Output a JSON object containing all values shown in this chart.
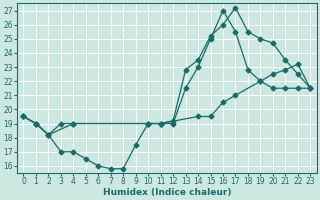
{
  "xlabel": "Humidex (Indice chaleur)",
  "bg_color": "#cce8e0",
  "grid_color": "#b0d8cf",
  "line_color": "#1a6b6b",
  "xlim": [
    -0.5,
    23.5
  ],
  "ylim": [
    15.5,
    27.5
  ],
  "xticks": [
    0,
    1,
    2,
    3,
    4,
    5,
    6,
    7,
    8,
    9,
    10,
    11,
    12,
    13,
    14,
    15,
    16,
    17,
    18,
    19,
    20,
    21,
    22,
    23
  ],
  "yticks": [
    16,
    17,
    18,
    19,
    20,
    21,
    22,
    23,
    24,
    25,
    26,
    27
  ],
  "line1_x": [
    0,
    1,
    2,
    4,
    10,
    11,
    14,
    15,
    16,
    17,
    19,
    20,
    21,
    22,
    23
  ],
  "line1_y": [
    19.5,
    19.0,
    18.2,
    19.0,
    19.0,
    19.0,
    19.5,
    19.5,
    20.5,
    21.0,
    22.0,
    22.5,
    22.8,
    23.2,
    21.5
  ],
  "line2_x": [
    0,
    1,
    2,
    3,
    4,
    5,
    6,
    7,
    8,
    9,
    10,
    11,
    12,
    13,
    14,
    15,
    16,
    17,
    18,
    19,
    20,
    21,
    22,
    23
  ],
  "line2_y": [
    19.5,
    19.0,
    18.2,
    17.0,
    17.0,
    16.5,
    16.0,
    15.8,
    15.8,
    17.5,
    19.0,
    19.0,
    19.0,
    21.5,
    23.0,
    25.0,
    27.0,
    25.5,
    22.8,
    22.0,
    21.5,
    21.5,
    21.5,
    21.5
  ],
  "line3_x": [
    0,
    1,
    2,
    3,
    4,
    10,
    11,
    12,
    13,
    14,
    15,
    16,
    17,
    18,
    19,
    20,
    21,
    22,
    23
  ],
  "line3_y": [
    19.5,
    19.0,
    18.2,
    19.0,
    19.0,
    19.0,
    19.0,
    19.2,
    22.8,
    23.5,
    25.2,
    26.0,
    27.2,
    25.5,
    25.0,
    24.7,
    23.5,
    22.5,
    21.5
  ]
}
